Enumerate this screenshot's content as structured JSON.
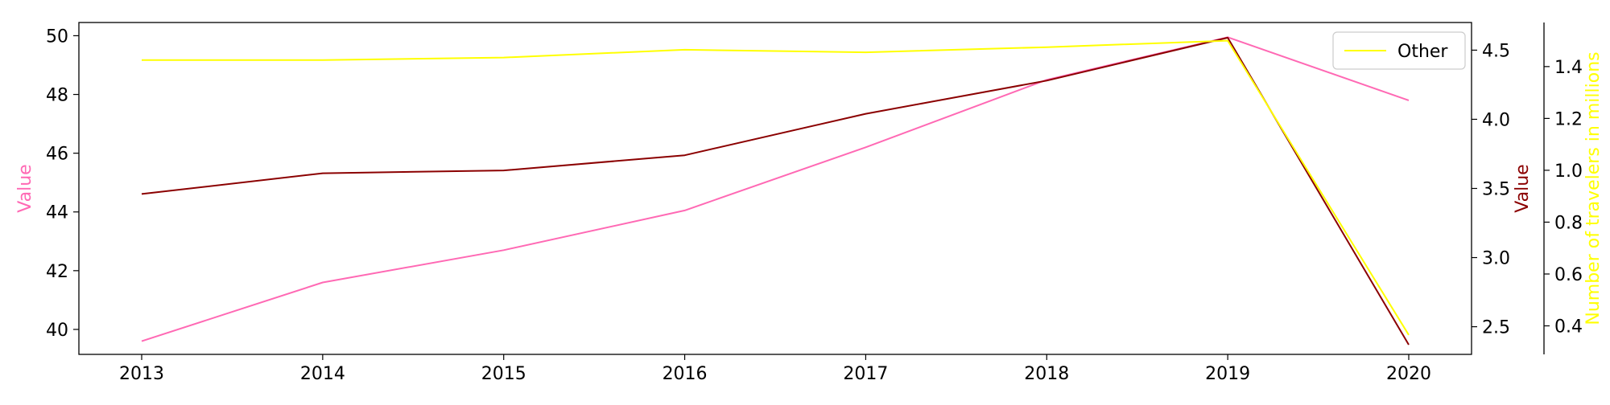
{
  "chart_data": {
    "type": "line",
    "x": [
      "2013",
      "2014",
      "2015",
      "2016",
      "2017",
      "2018",
      "2019",
      "2020"
    ],
    "series": [
      {
        "axis": "left",
        "color": "#ff69b4",
        "values": [
          39.6,
          41.6,
          42.7,
          44.05,
          46.2,
          48.5,
          49.95,
          47.8
        ]
      },
      {
        "axis": "right1",
        "color": "#8b0000",
        "values": [
          3.46,
          3.61,
          3.63,
          3.74,
          4.04,
          4.28,
          4.59,
          2.37
        ]
      },
      {
        "name": "Other",
        "axis": "right2",
        "color": "#ffff00",
        "values": [
          1.425,
          1.425,
          1.435,
          1.465,
          1.455,
          1.475,
          1.5,
          0.365
        ]
      }
    ],
    "axes": {
      "left": {
        "label": "Value",
        "label_color": "#ff69b4",
        "range": [
          39.15,
          50.45
        ],
        "ticks": [
          "40",
          "42",
          "44",
          "46",
          "48",
          "50"
        ]
      },
      "right1": {
        "label": "Value",
        "label_color": "#8b0000",
        "range": [
          2.3,
          4.7
        ],
        "ticks": [
          "2.5",
          "3.0",
          "3.5",
          "4.0",
          "4.5"
        ]
      },
      "right2": {
        "label": "Number of travelers in millions",
        "label_color": "#ffff00",
        "range": [
          0.29,
          1.57
        ],
        "ticks": [
          "0.4",
          "0.6",
          "0.8",
          "1.0",
          "1.2",
          "1.4"
        ]
      }
    },
    "grid": false,
    "legend": {
      "position": "top-right",
      "entries": [
        "Other"
      ]
    }
  }
}
